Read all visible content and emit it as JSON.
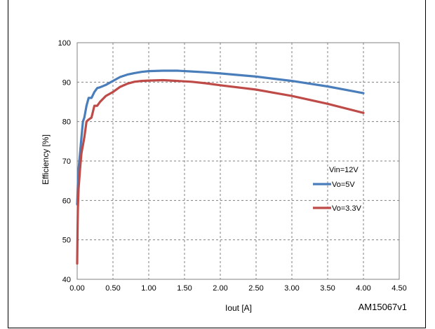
{
  "chart_data": {
    "type": "line",
    "xlabel": "Iout [A]",
    "ylabel": "Efficiency [%]",
    "xlim": [
      0,
      4.5
    ],
    "ylim": [
      40,
      100
    ],
    "xticks": [
      "0.00",
      "0.50",
      "1.00",
      "1.50",
      "2.00",
      "2.50",
      "3.00",
      "3.50",
      "4.00",
      "4.50"
    ],
    "yticks": [
      "40",
      "50",
      "60",
      "70",
      "80",
      "90",
      "100"
    ],
    "grid": true,
    "legend_title": "Vin=12V",
    "legend_position": "right",
    "reference": "AM15067v1",
    "series": [
      {
        "name": "Vo=5V",
        "color": "#4a7ebb",
        "x": [
          0.0,
          0.01,
          0.02,
          0.04,
          0.06,
          0.08,
          0.1,
          0.13,
          0.16,
          0.2,
          0.24,
          0.28,
          0.32,
          0.4,
          0.5,
          0.6,
          0.7,
          0.8,
          0.9,
          1.0,
          1.2,
          1.4,
          1.6,
          1.8,
          2.0,
          2.5,
          3.0,
          3.5,
          4.0
        ],
        "y": [
          59,
          64,
          68,
          72,
          76,
          80,
          81,
          84,
          86,
          86,
          87.5,
          88.5,
          88.7,
          89.3,
          90.3,
          91.3,
          91.9,
          92.3,
          92.6,
          92.8,
          92.9,
          92.9,
          92.7,
          92.5,
          92.2,
          91.4,
          90.3,
          88.9,
          87.2
        ]
      },
      {
        "name": "Vo=3.3V",
        "color": "#be4b48",
        "x": [
          0.0,
          0.005,
          0.01,
          0.02,
          0.04,
          0.06,
          0.08,
          0.1,
          0.13,
          0.16,
          0.2,
          0.24,
          0.28,
          0.32,
          0.4,
          0.5,
          0.6,
          0.7,
          0.8,
          0.9,
          1.0,
          1.2,
          1.4,
          1.6,
          1.8,
          2.0,
          2.5,
          3.0,
          3.5,
          4.0
        ],
        "y": [
          44,
          52,
          58,
          63,
          68,
          72,
          74,
          76,
          80,
          80.5,
          81,
          84,
          84,
          85,
          86.5,
          87.5,
          88.8,
          89.6,
          90.1,
          90.3,
          90.4,
          90.5,
          90.3,
          90.1,
          89.7,
          89.2,
          88.1,
          86.5,
          84.5,
          82.2
        ]
      }
    ]
  }
}
